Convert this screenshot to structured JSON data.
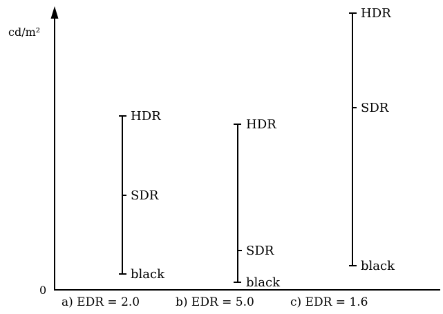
{
  "y_axis": {
    "unit_label": "cd/m²",
    "zero_label": "0"
  },
  "columns": [
    {
      "caption": "a) EDR = 2.0",
      "levels": [
        {
          "label": "HDR"
        },
        {
          "label": "SDR"
        },
        {
          "label": "black"
        }
      ]
    },
    {
      "caption": "b) EDR = 5.0",
      "levels": [
        {
          "label": "HDR"
        },
        {
          "label": "SDR"
        },
        {
          "label": "black"
        }
      ]
    },
    {
      "caption": "c) EDR = 1.6",
      "levels": [
        {
          "label": "HDR"
        },
        {
          "label": "SDR"
        },
        {
          "label": "black"
        }
      ]
    }
  ],
  "colors": {
    "ink": "#000000",
    "background": "#ffffff"
  }
}
